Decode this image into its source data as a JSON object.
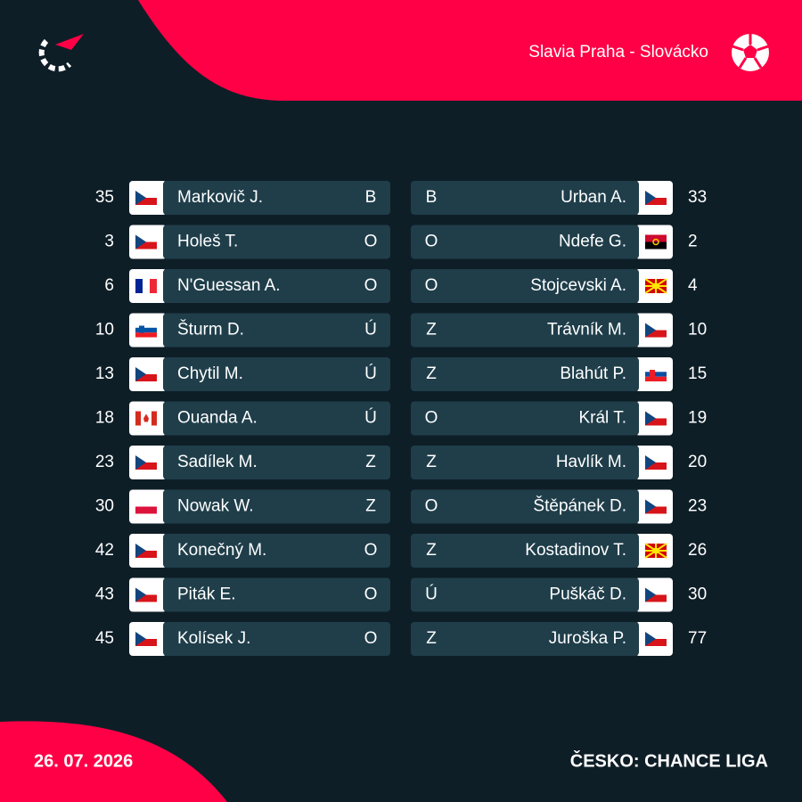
{
  "header": {
    "match": "Slavia Praha - Slovácko"
  },
  "home": [
    {
      "number": 35,
      "name": "Markovič J.",
      "position": "B"
    },
    {
      "number": 3,
      "name": "Holeš T.",
      "position": "O"
    },
    {
      "number": 6,
      "name": "N'Guessan A.",
      "position": "O"
    },
    {
      "number": 10,
      "name": "Šturm D.",
      "position": "Ú"
    },
    {
      "number": 13,
      "name": "Chytil M.",
      "position": "Ú"
    },
    {
      "number": 18,
      "name": "Ouanda A.",
      "position": "Ú"
    },
    {
      "number": 23,
      "name": "Sadílek M.",
      "position": "Z"
    },
    {
      "number": 30,
      "name": "Nowak W.",
      "position": "Z"
    },
    {
      "number": 42,
      "name": "Konečný M.",
      "position": "O"
    },
    {
      "number": 43,
      "name": "Piták E.",
      "position": "O"
    },
    {
      "number": 45,
      "name": "Kolísek J.",
      "position": "O"
    }
  ],
  "away": [
    {
      "number": 33,
      "name": "Urban A.",
      "position": "B"
    },
    {
      "number": 2,
      "name": "Ndefe G.",
      "position": "O"
    },
    {
      "number": 4,
      "name": "Stojcevski A.",
      "position": "O"
    },
    {
      "number": 10,
      "name": "Trávník M.",
      "position": "Z"
    },
    {
      "number": 15,
      "name": "Blahút P.",
      "position": "Z"
    },
    {
      "number": 19,
      "name": "Král T.",
      "position": "O"
    },
    {
      "number": 20,
      "name": "Havlík M.",
      "position": "Z"
    },
    {
      "number": 23,
      "name": "Štěpánek D.",
      "position": "O"
    },
    {
      "number": 26,
      "name": "Kostadinov T.",
      "position": "Z"
    },
    {
      "number": 30,
      "name": "Puškáč D.",
      "position": "Ú"
    },
    {
      "number": 77,
      "name": "Juroška P.",
      "position": "Z"
    }
  ],
  "footer": {
    "date": "26. 07. 2026",
    "competition": "ČESKO: CHANCE LIGA"
  }
}
